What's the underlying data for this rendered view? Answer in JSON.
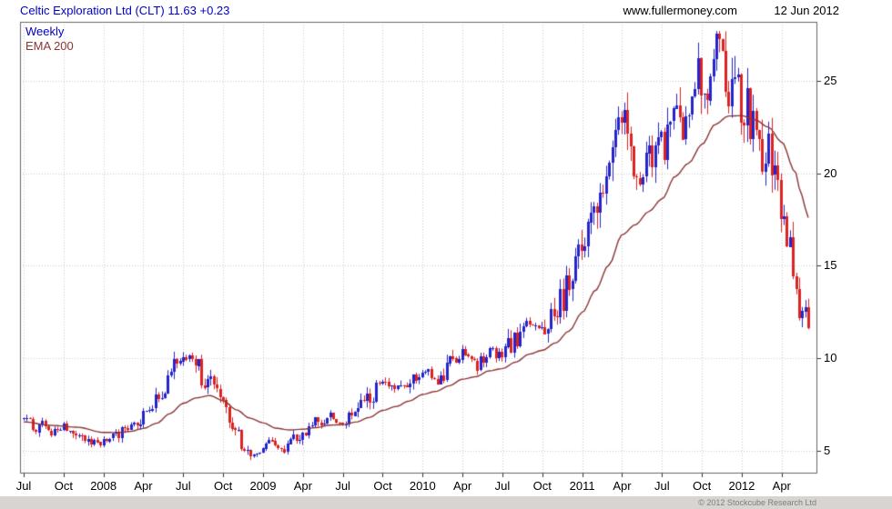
{
  "header": {
    "title": "Celtic Exploration Ltd (CLT) 11.63 +0.23",
    "website": "www.fullermoney.com",
    "date": "12 Jun 2012"
  },
  "legend": {
    "timeframe": "Weekly",
    "overlay": "EMA 200"
  },
  "footer": {
    "copyright": "© 2012 Stockcube Research Ltd"
  },
  "chart_data": {
    "type": "candlestick",
    "name": "Celtic Exploration Ltd",
    "symbol": "CLT",
    "last_price": 11.63,
    "change": "+0.23",
    "timeframe": "Weekly",
    "overlay": "EMA 200",
    "ema_period_days": 200,
    "x_range": [
      "Jul 2007",
      "Jun 2012"
    ],
    "months_span": 59,
    "weeks": 257,
    "ylim": [
      3.8,
      28.2
    ],
    "y_ticks": [
      5,
      10,
      15,
      20,
      25
    ],
    "y_axis_side": "right",
    "grid": "dotted",
    "legend_position": "top-left",
    "x_ticks": [
      {
        "month": 0,
        "label": "Jul"
      },
      {
        "month": 3,
        "label": "Oct"
      },
      {
        "month": 6,
        "label": "2008"
      },
      {
        "month": 9,
        "label": "Apr"
      },
      {
        "month": 12,
        "label": "Jul"
      },
      {
        "month": 15,
        "label": "Oct"
      },
      {
        "month": 18,
        "label": "2009"
      },
      {
        "month": 21,
        "label": "Apr"
      },
      {
        "month": 24,
        "label": "Jul"
      },
      {
        "month": 27,
        "label": "Oct"
      },
      {
        "month": 30,
        "label": "2010"
      },
      {
        "month": 33,
        "label": "Apr"
      },
      {
        "month": 36,
        "label": "Jul"
      },
      {
        "month": 39,
        "label": "Oct"
      },
      {
        "month": 42,
        "label": "2011"
      },
      {
        "month": 45,
        "label": "Apr"
      },
      {
        "month": 48,
        "label": "Jul"
      },
      {
        "month": 51,
        "label": "Oct"
      },
      {
        "month": 54,
        "label": "2012"
      },
      {
        "month": 57,
        "label": "Apr"
      }
    ],
    "colors": {
      "accent": "#0000c8",
      "up": "#2424cd",
      "down": "#dd2222",
      "ema": "#8b3434",
      "grid": "#cccccc",
      "frame": "#666666",
      "tick": "#333333"
    },
    "price_keypoints": [
      [
        0,
        6.7
      ],
      [
        0.5,
        6.45
      ],
      [
        1,
        6.2
      ],
      [
        1.5,
        6.35
      ],
      [
        2,
        5.9
      ],
      [
        2.5,
        6.15
      ],
      [
        3,
        6.3
      ],
      [
        3.5,
        6.1
      ],
      [
        4,
        5.9
      ],
      [
        4.5,
        5.75
      ],
      [
        5,
        5.6
      ],
      [
        5.5,
        5.45
      ],
      [
        6,
        5.4
      ],
      [
        6.5,
        5.65
      ],
      [
        7,
        5.9
      ],
      [
        7.5,
        6.1
      ],
      [
        8,
        6.3
      ],
      [
        8.5,
        6.55
      ],
      [
        9,
        6.8
      ],
      [
        9.5,
        7.2
      ],
      [
        10,
        7.6
      ],
      [
        10.5,
        8.4
      ],
      [
        11,
        9.2
      ],
      [
        11.6,
        10.3
      ],
      [
        12,
        10.0
      ],
      [
        12.4,
        9.6
      ],
      [
        13,
        9.9
      ],
      [
        13.6,
        8.5
      ],
      [
        14.2,
        8.8
      ],
      [
        14.8,
        8.2
      ],
      [
        15.5,
        6.6
      ],
      [
        16,
        6.0
      ],
      [
        16.5,
        5.2
      ],
      [
        17,
        5.0
      ],
      [
        17.5,
        4.9
      ],
      [
        18,
        5.2
      ],
      [
        18.5,
        5.5
      ],
      [
        19,
        5.2
      ],
      [
        19.5,
        5.0
      ],
      [
        20,
        5.4
      ],
      [
        20.5,
        5.8
      ],
      [
        21,
        6.0
      ],
      [
        21.5,
        6.3
      ],
      [
        22,
        6.45
      ],
      [
        22.5,
        6.6
      ],
      [
        23,
        6.9
      ],
      [
        23.5,
        6.7
      ],
      [
        24,
        6.5
      ],
      [
        24.5,
        6.8
      ],
      [
        25,
        7.1
      ],
      [
        25.5,
        7.45
      ],
      [
        26,
        7.8
      ],
      [
        26.5,
        8.25
      ],
      [
        27,
        8.7
      ],
      [
        27.5,
        8.45
      ],
      [
        28,
        8.2
      ],
      [
        28.5,
        8.55
      ],
      [
        29,
        8.9
      ],
      [
        29.5,
        9.15
      ],
      [
        30,
        9.4
      ],
      [
        30.5,
        9.15
      ],
      [
        31,
        8.9
      ],
      [
        31.5,
        9.3
      ],
      [
        32,
        9.7
      ],
      [
        32.5,
        10.0
      ],
      [
        33,
        10.3
      ],
      [
        33.5,
        9.9
      ],
      [
        34,
        9.5
      ],
      [
        34.5,
        10.05
      ],
      [
        35,
        10.6
      ],
      [
        35.5,
        10.25
      ],
      [
        36,
        9.9
      ],
      [
        36.5,
        10.55
      ],
      [
        37,
        11.2
      ],
      [
        37.5,
        11.55
      ],
      [
        38,
        11.9
      ],
      [
        38.5,
        11.6
      ],
      [
        39,
        11.3
      ],
      [
        39.5,
        11.85
      ],
      [
        40,
        12.4
      ],
      [
        40.5,
        13.2
      ],
      [
        41,
        14.0
      ],
      [
        41.5,
        15.2
      ],
      [
        42,
        16.5
      ],
      [
        42.5,
        17.5
      ],
      [
        43,
        18.5
      ],
      [
        43.5,
        19.5
      ],
      [
        44,
        20.5
      ],
      [
        44.5,
        21.8
      ],
      [
        45,
        23.2
      ],
      [
        45.5,
        21.0
      ],
      [
        46,
        19.4
      ],
      [
        46.5,
        20.1
      ],
      [
        47,
        20.8
      ],
      [
        47.5,
        21.05
      ],
      [
        48,
        21.3
      ],
      [
        48.5,
        23.0
      ],
      [
        49,
        24.8
      ],
      [
        49.5,
        22.6
      ],
      [
        50,
        23.4
      ],
      [
        50.5,
        24.5
      ],
      [
        51,
        25.6
      ],
      [
        51.5,
        24.2
      ],
      [
        52,
        26.8
      ],
      [
        52.3,
        27.2
      ],
      [
        52.7,
        25.8
      ],
      [
        53,
        24.5
      ],
      [
        53.4,
        25.3
      ],
      [
        54,
        23.2
      ],
      [
        54.4,
        23.8
      ],
      [
        55,
        22.0
      ],
      [
        55.5,
        20.6
      ],
      [
        56,
        21.2
      ],
      [
        56.5,
        19.8
      ],
      [
        57,
        18.4
      ],
      [
        57.4,
        16.6
      ],
      [
        58,
        14.2
      ],
      [
        58.4,
        12.6
      ],
      [
        58.6,
        13.3
      ],
      [
        58.85,
        12.1
      ],
      [
        59,
        11.63
      ]
    ],
    "ema_keypoints": [
      [
        0,
        6.55
      ],
      [
        2,
        6.36
      ],
      [
        4,
        6.26
      ],
      [
        6,
        5.98
      ],
      [
        7,
        5.97
      ],
      [
        8,
        6.03
      ],
      [
        9,
        6.19
      ],
      [
        10,
        6.47
      ],
      [
        11,
        7.0
      ],
      [
        12,
        7.55
      ],
      [
        13,
        7.85
      ],
      [
        14,
        7.97
      ],
      [
        15,
        7.7
      ],
      [
        16,
        7.2
      ],
      [
        17,
        6.75
      ],
      [
        18,
        6.5
      ],
      [
        19,
        6.2
      ],
      [
        20,
        6.11
      ],
      [
        21,
        6.15
      ],
      [
        22,
        6.24
      ],
      [
        23,
        6.37
      ],
      [
        24,
        6.4
      ],
      [
        25,
        6.54
      ],
      [
        26,
        6.79
      ],
      [
        27,
        7.17
      ],
      [
        28,
        7.38
      ],
      [
        29,
        7.68
      ],
      [
        30,
        8.03
      ],
      [
        31,
        8.2
      ],
      [
        32,
        8.5
      ],
      [
        33,
        8.86
      ],
      [
        34,
        8.99
      ],
      [
        35,
        9.31
      ],
      [
        36,
        9.43
      ],
      [
        37,
        9.78
      ],
      [
        38,
        10.21
      ],
      [
        39,
        10.42
      ],
      [
        40,
        10.82
      ],
      [
        41,
        11.46
      ],
      [
        42,
        12.47
      ],
      [
        43,
        13.67
      ],
      [
        44,
        15.04
      ],
      [
        45,
        16.67
      ],
      [
        46,
        17.22
      ],
      [
        47,
        17.93
      ],
      [
        48,
        18.61
      ],
      [
        49,
        19.84
      ],
      [
        50,
        20.55
      ],
      [
        51,
        21.56
      ],
      [
        52,
        22.65
      ],
      [
        53,
        23.1
      ],
      [
        54,
        23.12
      ],
      [
        55,
        22.9
      ],
      [
        56,
        22.5
      ],
      [
        57,
        21.7
      ],
      [
        58,
        20.1
      ],
      [
        58.5,
        18.8
      ],
      [
        59,
        17.6
      ]
    ]
  }
}
